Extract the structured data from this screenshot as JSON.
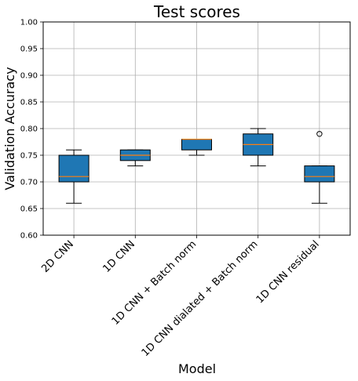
{
  "chart_data": {
    "type": "box",
    "title": "Test scores",
    "xlabel": "Model",
    "ylabel": "Validation Accuracy",
    "ylim": [
      0.6,
      1.0
    ],
    "yticks": [
      "0.60",
      "0.65",
      "0.70",
      "0.75",
      "0.80",
      "0.85",
      "0.90",
      "0.95",
      "1.00"
    ],
    "grid": true,
    "box_color": "#1f77b4",
    "median_color": "#ff7f0e",
    "categories": [
      "2D CNN",
      "1D CNN",
      "1D CNN + Batch norm",
      "1D CNN dialated + Batch norm",
      "1D CNN residual"
    ],
    "boxes": [
      {
        "whisker_low": 0.66,
        "q1": 0.7,
        "median": 0.71,
        "q3": 0.75,
        "whisker_high": 0.76,
        "outliers": []
      },
      {
        "whisker_low": 0.73,
        "q1": 0.74,
        "median": 0.75,
        "q3": 0.76,
        "whisker_high": 0.76,
        "outliers": []
      },
      {
        "whisker_low": 0.75,
        "q1": 0.76,
        "median": 0.78,
        "q3": 0.78,
        "whisker_high": 0.78,
        "outliers": []
      },
      {
        "whisker_low": 0.73,
        "q1": 0.75,
        "median": 0.77,
        "q3": 0.79,
        "whisker_high": 0.8,
        "outliers": []
      },
      {
        "whisker_low": 0.66,
        "q1": 0.7,
        "median": 0.71,
        "q3": 0.73,
        "whisker_high": 0.73,
        "outliers": [
          0.79
        ]
      }
    ]
  }
}
